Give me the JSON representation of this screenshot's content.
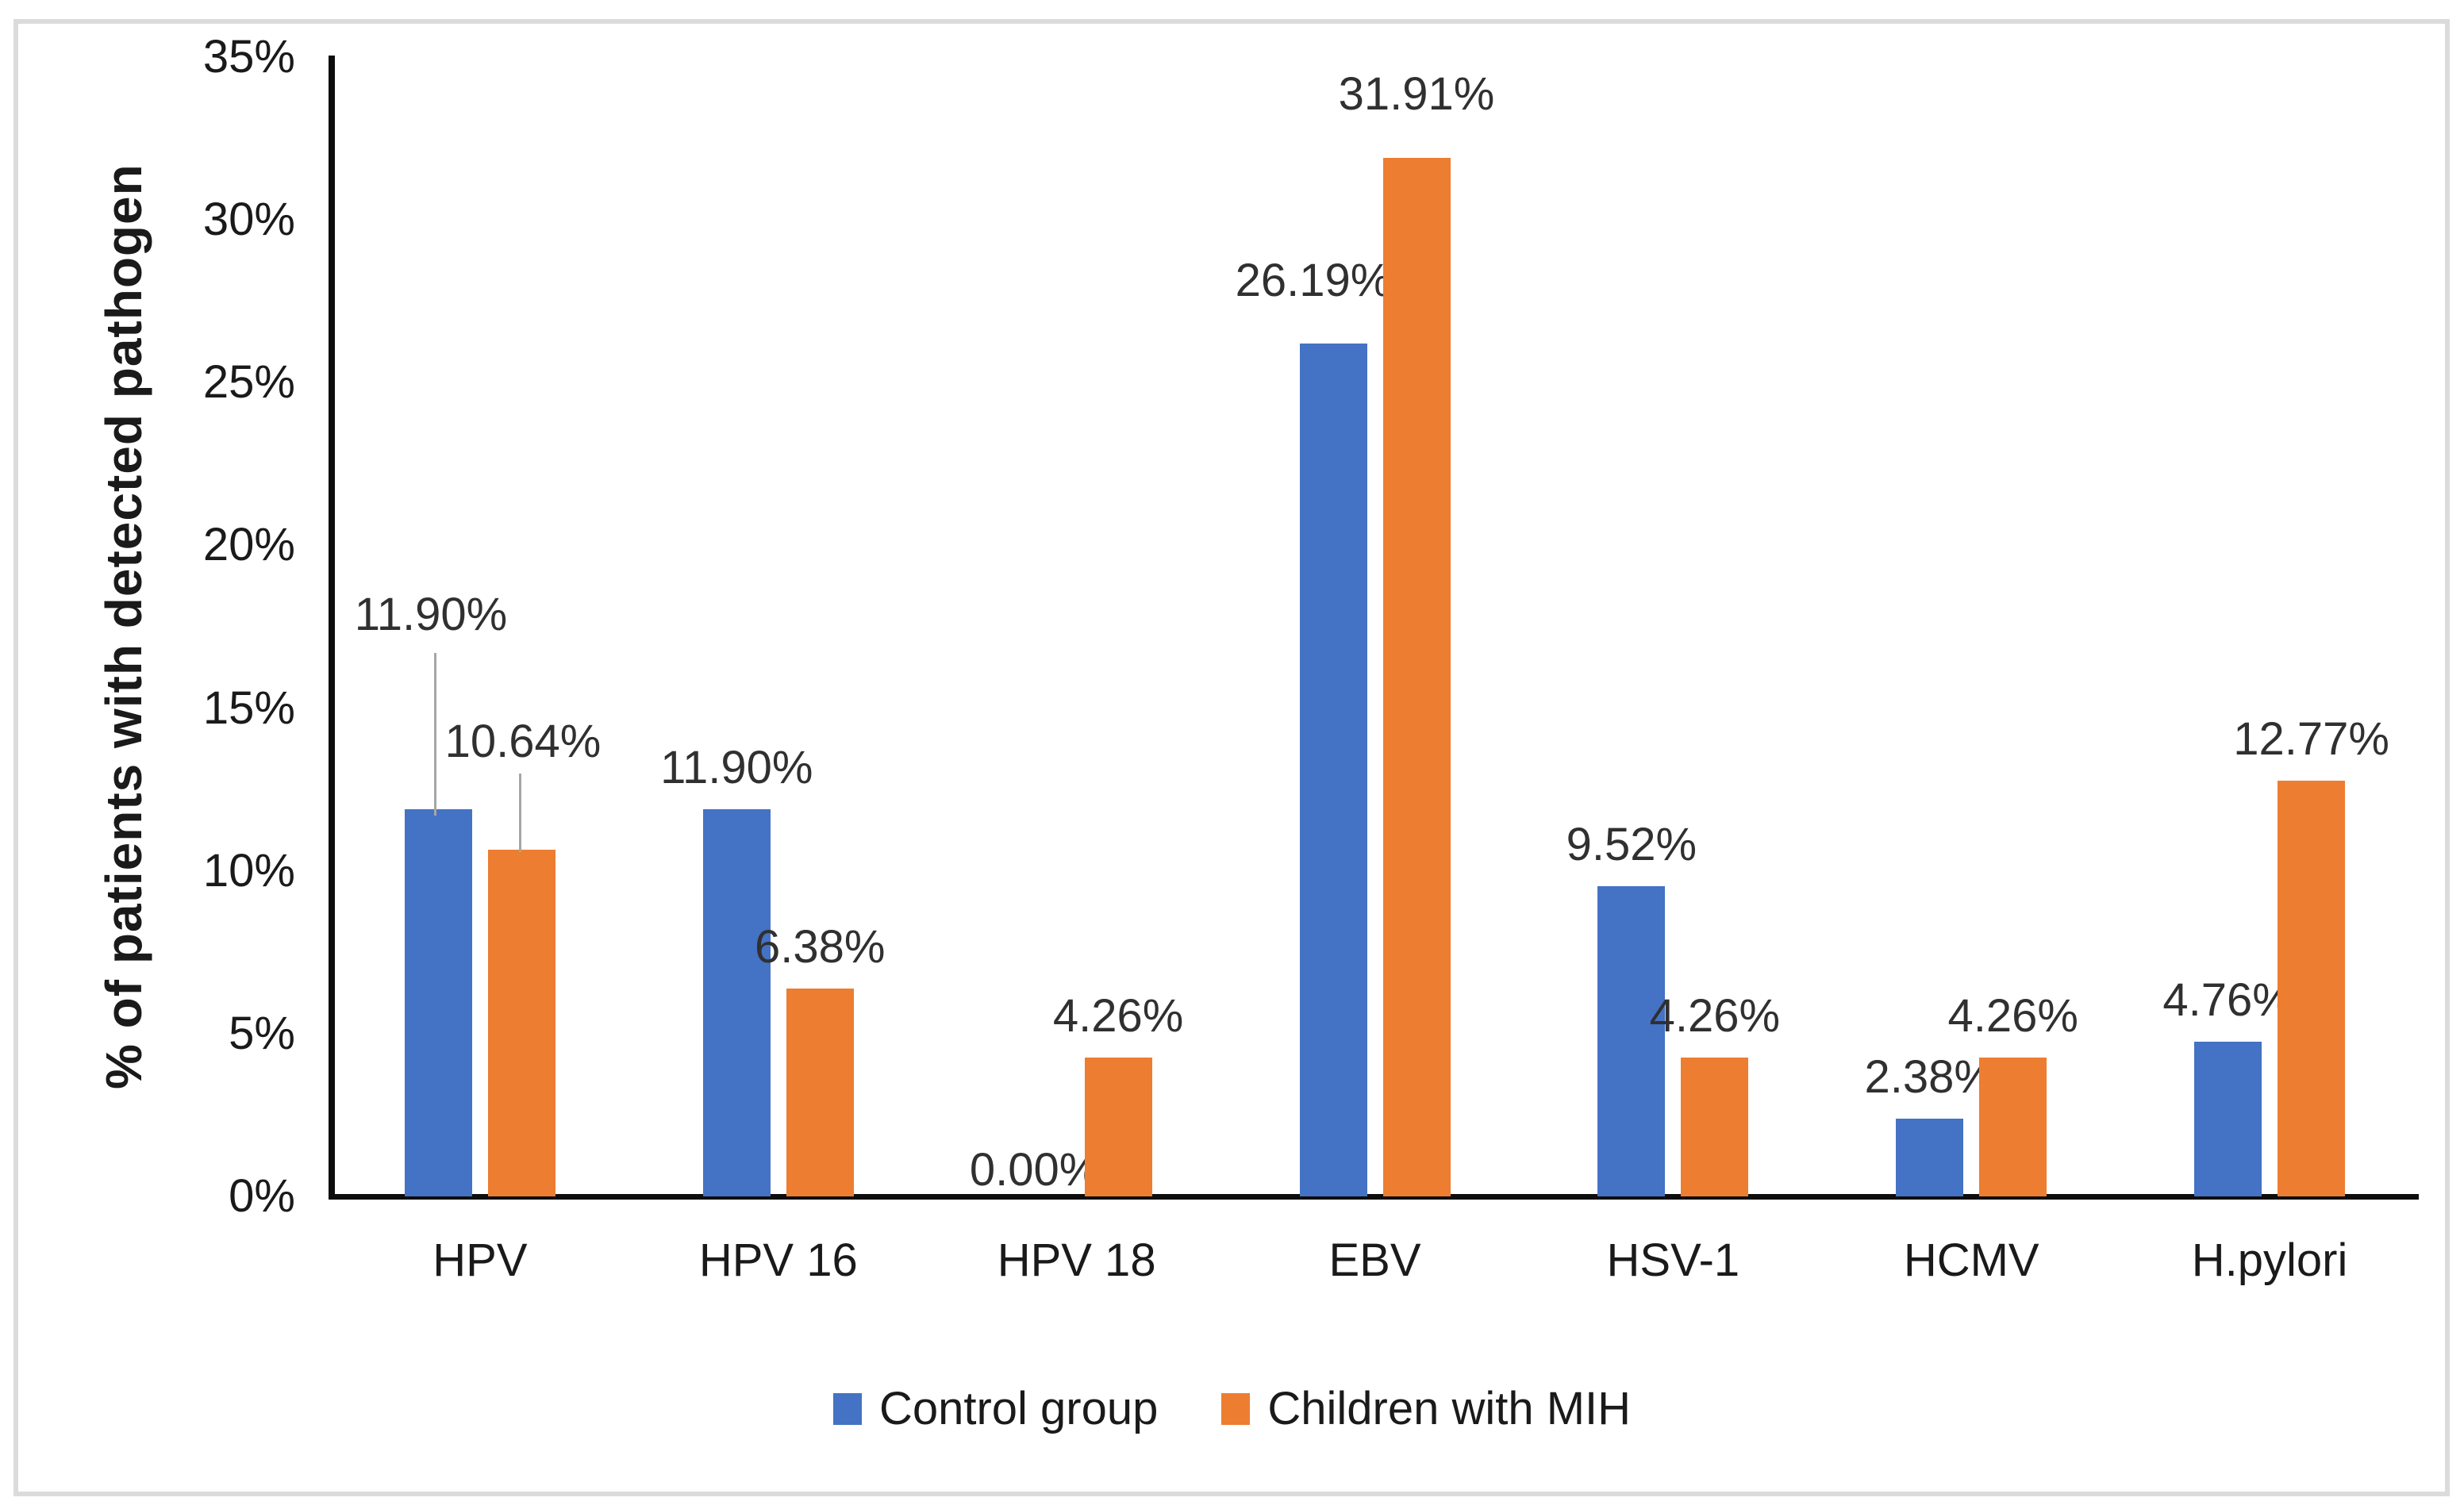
{
  "chart_data": {
    "type": "bar",
    "title": "",
    "xlabel": "",
    "ylabel": "% of patients with detected pathogen",
    "categories": [
      "HPV",
      "HPV 16",
      "HPV 18",
      "EBV",
      "HSV-1",
      "HCMV",
      "H.pylori"
    ],
    "series": [
      {
        "name": "Control group",
        "color": "#4472C4",
        "values": [
          11.9,
          11.9,
          0.0,
          26.19,
          9.52,
          2.38,
          4.76
        ],
        "labels": [
          "11.90%",
          "11.90%",
          "0.00%",
          "26.19%",
          "9.52%",
          "2.38%",
          "4.76%"
        ]
      },
      {
        "name": "Children with MIH",
        "color": "#ED7D31",
        "values": [
          10.64,
          6.38,
          4.26,
          31.91,
          4.26,
          4.26,
          12.77
        ],
        "labels": [
          "10.64%",
          "6.38%",
          "4.26%",
          "31.91%",
          "4.26%",
          "4.26%",
          "12.77%"
        ]
      }
    ],
    "y_axis": {
      "min": 0,
      "max": 35,
      "step": 5,
      "tick_labels": [
        "0%",
        "5%",
        "10%",
        "15%",
        "20%",
        "25%",
        "30%",
        "35%"
      ]
    },
    "grid": false,
    "legend_position": "bottom",
    "colors": {
      "axis_line": "#0d0d0d",
      "leader_line": "#a6a6a6",
      "label_text": "#303030",
      "frame_border": "#dbdbdb"
    },
    "callouts": [
      {
        "category": "HPV",
        "series": "Control group",
        "label": "11.90%",
        "has_leader_line": true
      },
      {
        "category": "HPV",
        "series": "Children with MIH",
        "label": "10.64%",
        "has_leader_line": true
      }
    ]
  }
}
